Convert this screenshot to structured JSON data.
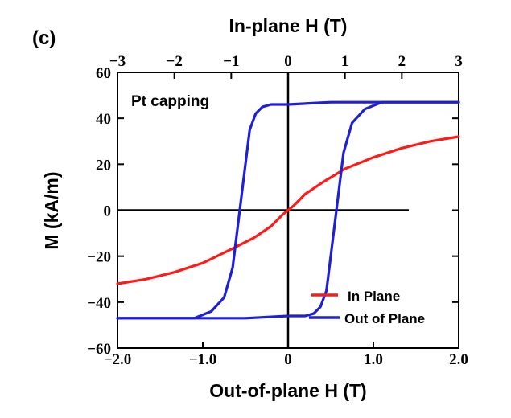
{
  "chart_data": {
    "type": "line",
    "panel_label": "(c)",
    "annotation": "Pt capping",
    "xlabel": "Out-of-plane H (T)",
    "x2label": "In-plane H (T)",
    "ylabel": "M (kA/m)",
    "xlim": [
      -2.0,
      2.0
    ],
    "x2lim": [
      -3,
      3
    ],
    "ylim": [
      -60,
      60
    ],
    "grid": false,
    "legend_position": "bottom-right",
    "x_ticks": [
      -2.0,
      -1.0,
      0,
      1.0,
      2.0
    ],
    "x_tick_labels": [
      "−2.0",
      "−1.0",
      "0",
      "1.0",
      "2.0"
    ],
    "x2_ticks": [
      -3,
      -2,
      -1,
      0,
      1,
      2,
      3
    ],
    "x2_tick_labels": [
      "−3",
      "−2",
      "−1",
      "0",
      "1",
      "2",
      "3"
    ],
    "y_ticks": [
      -60,
      -40,
      -20,
      0,
      20,
      40,
      60
    ],
    "y_tick_labels": [
      "−60",
      "−40",
      "−20",
      "0",
      "20",
      "40",
      "60"
    ],
    "series": [
      {
        "name": "In Plane",
        "color": "#ff1a1a",
        "axis": "top",
        "x": [
          -3.0,
          -2.5,
          -2.0,
          -1.5,
          -1.0,
          -0.6,
          -0.3,
          -0.1,
          0.0,
          0.1,
          0.3,
          0.6,
          1.0,
          1.5,
          2.0,
          2.5,
          3.0
        ],
        "y": [
          -32,
          -30,
          -27,
          -23,
          -17,
          -12,
          -7,
          -2,
          0,
          2,
          7,
          12,
          18,
          23,
          27,
          30,
          32
        ]
      },
      {
        "name": "Out of Plane",
        "color": "#1f1fd6",
        "axis": "bottom",
        "branches": [
          {
            "x": [
              -2.0,
              -1.1,
              -0.9,
              -0.75,
              -0.65,
              -0.6,
              -0.55,
              -0.5,
              -0.45,
              -0.38,
              -0.3,
              -0.2,
              0.0,
              0.5,
              1.0,
              1.5,
              2.0
            ],
            "y": [
              -47,
              -47,
              -44,
              -38,
              -25,
              -10,
              5,
              20,
              35,
              42,
              45,
              46,
              46,
              47,
              47,
              47,
              47
            ]
          },
          {
            "x": [
              2.0,
              1.1,
              0.9,
              0.75,
              0.65,
              0.6,
              0.55,
              0.5,
              0.45,
              0.38,
              0.3,
              0.2,
              0.0,
              -0.5,
              -1.0,
              -1.5,
              -2.0
            ],
            "y": [
              47,
              47,
              44,
              38,
              25,
              10,
              -5,
              -20,
              -35,
              -42,
              -45,
              -46,
              -46,
              -47,
              -47,
              -47,
              -47
            ]
          }
        ]
      }
    ]
  }
}
